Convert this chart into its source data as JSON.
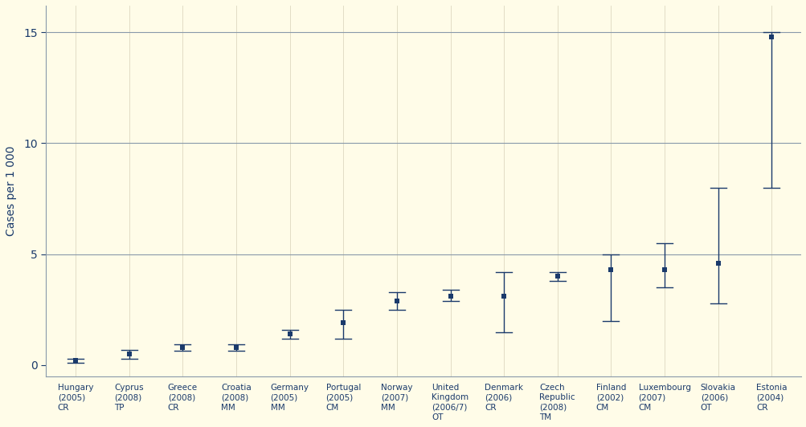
{
  "categories": [
    "Hungary\n(2005)\nCR",
    "Cyprus\n(2008)\nTP",
    "Greece\n(2008)\nCR",
    "Croatia\n(2008)\nMM",
    "Germany\n(2005)\nMM",
    "Portugal\n(2005)\nCM",
    "Norway\n(2007)\nMM",
    "United\nKingdom\n(2006/7)\nOT",
    "Denmark\n(2006)\nCR",
    "Czech\nRepublic\n(2008)\nTM",
    "Finland\n(2002)\nCM",
    "Luxembourg\n(2007)\nCM",
    "Slovakia\n(2006)\nOT",
    "Estonia\n(2004)\nCR"
  ],
  "values": [
    0.2,
    0.5,
    0.8,
    0.8,
    1.4,
    1.9,
    2.9,
    3.1,
    3.1,
    4.0,
    4.3,
    4.3,
    4.6,
    14.8
  ],
  "ci_low": [
    0.1,
    0.3,
    0.65,
    0.65,
    1.2,
    1.2,
    2.5,
    2.9,
    1.5,
    3.8,
    2.0,
    3.5,
    2.8,
    8.0
  ],
  "ci_high": [
    0.3,
    0.7,
    0.95,
    0.95,
    1.6,
    2.5,
    3.3,
    3.4,
    4.2,
    4.2,
    5.0,
    5.5,
    8.0,
    15.0
  ],
  "has_ci": [
    true,
    true,
    true,
    true,
    true,
    true,
    true,
    true,
    true,
    true,
    true,
    true,
    true,
    true
  ],
  "color": "#1a3a6b",
  "background": "#fffce8",
  "ylabel": "Cases per 1 000",
  "yticks": [
    0,
    5,
    10,
    15
  ],
  "hlines": [
    5,
    10,
    15
  ],
  "hline_color": "#8899aa",
  "vgrid_color": "#ddd8c0",
  "spine_color": "#8899aa"
}
